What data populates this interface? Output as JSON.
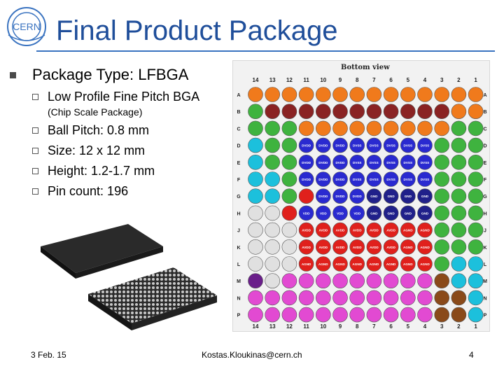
{
  "title": "Final Product Package",
  "logo": {
    "text": "CERN"
  },
  "main_bullet": "Package Type: LFBGA",
  "sub_bullets": [
    "Low Profile Fine Pitch BGA",
    "Ball Pitch: 0.8 mm",
    "Size: 12 x 12 mm",
    "Height: 1.2-1.7 mm",
    "Pin count: 196"
  ],
  "sub_note": "(Chip Scale Package)",
  "pinmap": {
    "caption": "Bottom view",
    "columns": [
      "14",
      "13",
      "12",
      "11",
      "10",
      "9",
      "8",
      "7",
      "6",
      "5",
      "4",
      "3",
      "2",
      "1"
    ],
    "rows": [
      "A",
      "B",
      "C",
      "D",
      "E",
      "F",
      "G",
      "H",
      "J",
      "K",
      "L",
      "M",
      "N",
      "P"
    ],
    "legend_colors": {
      "io": "#f07a1c",
      "signal": "#8a2323",
      "green": "#3fb33f",
      "vdd_blue": "#2a2ad0",
      "gnd": "#20208a",
      "red": "#e0201c",
      "magenta": "#e24ad2",
      "cyan": "#1cc0dc",
      "purple": "#6a1f8a",
      "brown": "#8a4a1a",
      "light": "#e0e0e0"
    },
    "cells": [
      [
        "io",
        "io",
        "io",
        "io",
        "io",
        "io",
        "io",
        "io",
        "io",
        "io",
        "io",
        "io",
        "io",
        "io"
      ],
      [
        "green",
        "sig",
        "sig",
        "sig",
        "sig",
        "sig",
        "sig",
        "sig",
        "sig",
        "sig",
        "sig",
        "sig",
        "io",
        "io"
      ],
      [
        "green",
        "green",
        "green",
        "io",
        "io",
        "io",
        "io",
        "io",
        "io",
        "io",
        "io",
        "io",
        "green",
        "green"
      ],
      [
        "cyan",
        "green",
        "green",
        "vdd",
        "vdd",
        "vdd",
        "vdd",
        "vdd",
        "vdd",
        "vdd",
        "vdd",
        "green",
        "green",
        "green"
      ],
      [
        "cyan",
        "green",
        "green",
        "vdd",
        "vdd",
        "vdd",
        "vdd",
        "vdd",
        "vdd",
        "vdd",
        "vdd",
        "green",
        "green",
        "green"
      ],
      [
        "cyan",
        "cyan",
        "green",
        "vdd",
        "vdd",
        "vdd",
        "vdd",
        "vdd",
        "vdd",
        "vdd",
        "vdd",
        "green",
        "green",
        "green"
      ],
      [
        "cyan",
        "cyan",
        "green",
        "red",
        "vdd",
        "vdd",
        "vdd",
        "gnd",
        "gnd",
        "gnd",
        "gnd",
        "green",
        "green",
        "green"
      ],
      [
        "light",
        "light",
        "red",
        "vdd",
        "vdd",
        "vdd",
        "vdd",
        "gnd",
        "gnd",
        "gnd",
        "gnd",
        "green",
        "green",
        "green"
      ],
      [
        "light",
        "light",
        "light",
        "red",
        "red",
        "red",
        "red",
        "red",
        "red",
        "red",
        "red",
        "green",
        "green",
        "green"
      ],
      [
        "light",
        "light",
        "light",
        "red",
        "red",
        "red",
        "red",
        "red",
        "red",
        "red",
        "red",
        "green",
        "green",
        "green"
      ],
      [
        "light",
        "light",
        "light",
        "red",
        "red",
        "red",
        "red",
        "red",
        "red",
        "red",
        "red",
        "green",
        "cyan",
        "cyan"
      ],
      [
        "purple",
        "light",
        "magenta",
        "magenta",
        "magenta",
        "magenta",
        "magenta",
        "magenta",
        "magenta",
        "magenta",
        "magenta",
        "brown",
        "cyan",
        "cyan"
      ],
      [
        "magenta",
        "magenta",
        "magenta",
        "magenta",
        "magenta",
        "magenta",
        "magenta",
        "magenta",
        "magenta",
        "magenta",
        "magenta",
        "brown",
        "brown",
        "cyan"
      ],
      [
        "magenta",
        "magenta",
        "magenta",
        "magenta",
        "magenta",
        "magenta",
        "magenta",
        "magenta",
        "magenta",
        "magenta",
        "magenta",
        "brown",
        "brown",
        "cyan"
      ]
    ],
    "labels": [
      [
        "",
        "",
        "",
        "",
        "",
        "",
        "",
        "",
        "",
        "",
        "",
        "",
        "",
        ""
      ],
      [
        "",
        "",
        "",
        "",
        "",
        "",
        "",
        "",
        "",
        "",
        "",
        "",
        "",
        ""
      ],
      [
        "",
        "",
        "",
        "",
        "",
        "",
        "",
        "",
        "",
        "",
        "",
        "",
        "",
        ""
      ],
      [
        "",
        "",
        "",
        "DVDD",
        "DVDD",
        "DVDD",
        "DVSS",
        "DVSS",
        "DVSS",
        "DVSS",
        "DVSS",
        "",
        "",
        ""
      ],
      [
        "",
        "",
        "",
        "DVDD",
        "DVDD",
        "DVDD",
        "DVSS",
        "DVSS",
        "DVSS",
        "DVSS",
        "DVSS",
        "",
        "",
        ""
      ],
      [
        "",
        "",
        "",
        "DVDD",
        "DVDD",
        "DVDD",
        "DVSS",
        "DVSS",
        "DVSS",
        "DVSS",
        "DVSS",
        "",
        "",
        ""
      ],
      [
        "",
        "",
        "",
        "",
        "DVDD",
        "DVDD",
        "DVDD",
        "GND",
        "GND",
        "GND",
        "GND",
        "",
        "",
        ""
      ],
      [
        "",
        "",
        "",
        "VDD",
        "VDD",
        "VDD",
        "VDD",
        "GND",
        "GND",
        "GND",
        "GND",
        "",
        "",
        ""
      ],
      [
        "",
        "",
        "",
        "AVDD",
        "AVDD",
        "AVDD",
        "AVDD",
        "AVDD",
        "AVDD",
        "AGND",
        "AGND",
        "",
        "",
        ""
      ],
      [
        "",
        "",
        "",
        "AVDD",
        "AVDD",
        "AVDD",
        "AVDD",
        "AVDD",
        "AVDD",
        "AGND",
        "AGND",
        "",
        "",
        ""
      ],
      [
        "",
        "",
        "",
        "AGND",
        "AGND",
        "AGND",
        "AGND",
        "AGND",
        "AGND",
        "AGND",
        "AGND",
        "",
        "",
        ""
      ],
      [
        "",
        "",
        "",
        "",
        "",
        "",
        "",
        "",
        "",
        "",
        "",
        "",
        "",
        ""
      ],
      [
        "",
        "",
        "",
        "",
        "",
        "",
        "",
        "",
        "",
        "",
        "",
        "",
        "",
        ""
      ],
      [
        "",
        "",
        "",
        "",
        "",
        "",
        "",
        "",
        "",
        "",
        "",
        "",
        "",
        ""
      ]
    ]
  },
  "footer": {
    "date": "3 Feb. 15",
    "author": "Kostas.Kloukinas@cern.ch",
    "page": "4"
  }
}
